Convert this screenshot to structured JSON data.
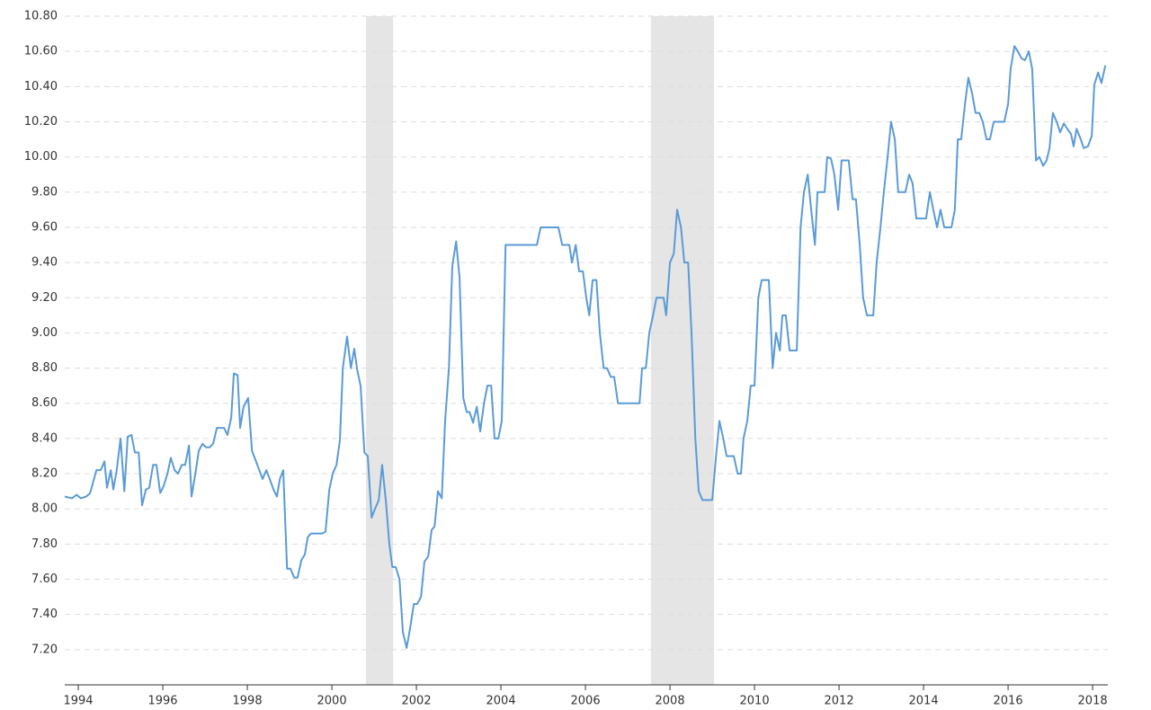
{
  "chart_data": {
    "type": "line",
    "color": "#5b9bd5",
    "grid": true,
    "shade_color": "#e5e5e5",
    "xlim": [
      1993.68,
      2018.36
    ],
    "xticks": [
      1994,
      1996,
      1998,
      2000,
      2002,
      2004,
      2006,
      2008,
      2010,
      2012,
      2014,
      2016,
      2018
    ],
    "ylim": [
      7.0,
      10.8
    ],
    "yticks": [
      {
        "value": 7.2,
        "label": "7.20"
      },
      {
        "value": 7.4,
        "label": "7.40"
      },
      {
        "value": 7.6,
        "label": "7.60"
      },
      {
        "value": 7.8,
        "label": "7.80"
      },
      {
        "value": 8.0,
        "label": "8.00"
      },
      {
        "value": 8.2,
        "label": "8.20"
      },
      {
        "value": 8.4,
        "label": "8.40"
      },
      {
        "value": 8.6,
        "label": "8.60"
      },
      {
        "value": 8.8,
        "label": "8.80"
      },
      {
        "value": 9.0,
        "label": "9.00"
      },
      {
        "value": 9.2,
        "label": "9.20"
      },
      {
        "value": 9.4,
        "label": "9.40"
      },
      {
        "value": 9.6,
        "label": "9.60"
      },
      {
        "value": 9.8,
        "label": "9.80"
      },
      {
        "value": 10.0,
        "label": "10.00"
      },
      {
        "value": 10.2,
        "label": "10.20"
      },
      {
        "value": 10.4,
        "label": "10.40"
      },
      {
        "value": 10.6,
        "label": "10.60"
      },
      {
        "value": 10.8,
        "label": "10.80"
      }
    ],
    "shaded_ranges": [
      [
        2000.81,
        2001.45
      ],
      [
        2007.55,
        2009.04
      ]
    ],
    "x": [
      1993.68,
      1993.85,
      1993.96,
      1994.06,
      1994.19,
      1994.28,
      1994.43,
      1994.53,
      1994.62,
      1994.68,
      1994.77,
      1994.83,
      1994.91,
      1995.0,
      1995.09,
      1995.17,
      1995.26,
      1995.34,
      1995.43,
      1995.51,
      1995.6,
      1995.68,
      1995.77,
      1995.85,
      1995.94,
      1996.02,
      1996.11,
      1996.19,
      1996.28,
      1996.36,
      1996.45,
      1996.53,
      1996.62,
      1996.68,
      1996.79,
      1996.85,
      1996.94,
      1997.02,
      1997.11,
      1997.19,
      1997.28,
      1997.36,
      1997.45,
      1997.53,
      1997.62,
      1997.68,
      1997.77,
      1997.83,
      1997.91,
      1998.02,
      1998.11,
      1998.19,
      1998.36,
      1998.45,
      1998.53,
      1998.62,
      1998.7,
      1998.77,
      1998.85,
      1998.94,
      1999.02,
      1999.11,
      1999.19,
      1999.28,
      1999.36,
      1999.43,
      1999.51,
      1999.6,
      1999.77,
      1999.85,
      1999.94,
      2000.02,
      2000.11,
      2000.19,
      2000.26,
      2000.36,
      2000.45,
      2000.53,
      2000.6,
      2000.68,
      2000.77,
      2000.85,
      2000.94,
      2001.02,
      2001.11,
      2001.19,
      2001.28,
      2001.36,
      2001.43,
      2001.51,
      2001.6,
      2001.68,
      2001.77,
      2001.85,
      2001.94,
      2002.02,
      2002.11,
      2002.19,
      2002.28,
      2002.36,
      2002.43,
      2002.51,
      2002.6,
      2002.68,
      2002.77,
      2002.85,
      2002.94,
      2003.02,
      2003.11,
      2003.19,
      2003.26,
      2003.34,
      2003.43,
      2003.51,
      2003.6,
      2003.68,
      2003.77,
      2003.85,
      2003.94,
      2004.02,
      2004.11,
      2004.28,
      2004.85,
      2004.94,
      2005.36,
      2005.45,
      2005.62,
      2005.68,
      2005.77,
      2005.85,
      2005.94,
      2006.02,
      2006.09,
      2006.17,
      2006.26,
      2006.34,
      2006.43,
      2006.51,
      2006.6,
      2006.68,
      2006.77,
      2007.28,
      2007.34,
      2007.43,
      2007.51,
      2007.6,
      2007.68,
      2007.85,
      2007.91,
      2008.0,
      2008.09,
      2008.17,
      2008.26,
      2008.34,
      2008.43,
      2008.51,
      2008.6,
      2008.68,
      2008.77,
      2009.0,
      2009.09,
      2009.17,
      2009.26,
      2009.34,
      2009.51,
      2009.6,
      2009.68,
      2009.74,
      2009.83,
      2009.91,
      2010.0,
      2010.09,
      2010.17,
      2010.34,
      2010.43,
      2010.51,
      2010.6,
      2010.66,
      2010.74,
      2010.83,
      2011.0,
      2011.09,
      2011.17,
      2011.26,
      2011.34,
      2011.43,
      2011.49,
      2011.66,
      2011.72,
      2011.81,
      2011.89,
      2011.98,
      2012.06,
      2012.23,
      2012.32,
      2012.4,
      2012.49,
      2012.57,
      2012.66,
      2012.81,
      2012.89,
      2012.98,
      2013.06,
      2013.15,
      2013.23,
      2013.32,
      2013.4,
      2013.57,
      2013.66,
      2013.74,
      2013.83,
      2014.06,
      2014.15,
      2014.23,
      2014.32,
      2014.4,
      2014.49,
      2014.66,
      2014.74,
      2014.81,
      2014.89,
      2014.98,
      2015.06,
      2015.15,
      2015.23,
      2015.32,
      2015.4,
      2015.49,
      2015.57,
      2015.66,
      2015.91,
      2016.0,
      2016.06,
      2016.15,
      2016.23,
      2016.32,
      2016.4,
      2016.49,
      2016.57,
      2016.66,
      2016.74,
      2016.83,
      2016.91,
      2016.98,
      2017.06,
      2017.15,
      2017.23,
      2017.32,
      2017.4,
      2017.49,
      2017.55,
      2017.62,
      2017.72,
      2017.79,
      2017.89,
      2017.98,
      2018.04,
      2018.13,
      2018.21,
      2018.3
    ],
    "values": [
      8.07,
      8.06,
      8.08,
      8.06,
      8.07,
      8.09,
      8.22,
      8.22,
      8.27,
      8.12,
      8.22,
      8.11,
      8.22,
      8.4,
      8.1,
      8.41,
      8.42,
      8.32,
      8.32,
      8.02,
      8.11,
      8.12,
      8.25,
      8.25,
      8.09,
      8.13,
      8.2,
      8.29,
      8.22,
      8.2,
      8.25,
      8.25,
      8.36,
      8.07,
      8.23,
      8.33,
      8.37,
      8.35,
      8.35,
      8.37,
      8.46,
      8.46,
      8.46,
      8.42,
      8.52,
      8.77,
      8.76,
      8.46,
      8.58,
      8.63,
      8.33,
      8.28,
      8.17,
      8.22,
      8.17,
      8.11,
      8.07,
      8.17,
      8.22,
      7.66,
      7.66,
      7.61,
      7.61,
      7.71,
      7.74,
      7.84,
      7.86,
      7.86,
      7.86,
      7.87,
      8.11,
      8.2,
      8.25,
      8.39,
      8.8,
      8.98,
      8.8,
      8.91,
      8.79,
      8.7,
      8.32,
      8.3,
      7.95,
      8.0,
      8.05,
      8.25,
      8.04,
      7.8,
      7.67,
      7.67,
      7.6,
      7.3,
      7.21,
      7.32,
      7.46,
      7.46,
      7.5,
      7.7,
      7.73,
      7.88,
      7.9,
      8.1,
      8.06,
      8.5,
      8.8,
      9.38,
      9.52,
      9.32,
      8.63,
      8.55,
      8.55,
      8.49,
      8.58,
      8.44,
      8.6,
      8.7,
      8.7,
      8.4,
      8.4,
      8.5,
      9.5,
      9.5,
      9.5,
      9.6,
      9.6,
      9.5,
      9.5,
      9.4,
      9.5,
      9.35,
      9.35,
      9.2,
      9.1,
      9.3,
      9.3,
      9.0,
      8.8,
      8.8,
      8.75,
      8.75,
      8.6,
      8.6,
      8.8,
      8.8,
      9.0,
      9.1,
      9.2,
      9.2,
      9.1,
      9.4,
      9.45,
      9.7,
      9.6,
      9.4,
      9.4,
      9.0,
      8.4,
      8.1,
      8.05,
      8.05,
      8.3,
      8.5,
      8.4,
      8.3,
      8.3,
      8.2,
      8.2,
      8.4,
      8.5,
      8.7,
      8.7,
      9.2,
      9.3,
      9.3,
      8.8,
      9.0,
      8.9,
      9.1,
      9.1,
      8.9,
      8.9,
      9.6,
      9.8,
      9.9,
      9.7,
      9.5,
      9.8,
      9.8,
      10.0,
      9.99,
      9.9,
      9.7,
      9.98,
      9.98,
      9.76,
      9.76,
      9.5,
      9.2,
      9.1,
      9.1,
      9.4,
      9.6,
      9.8,
      10.0,
      10.2,
      10.1,
      9.8,
      9.8,
      9.9,
      9.85,
      9.65,
      9.65,
      9.8,
      9.7,
      9.6,
      9.7,
      9.6,
      9.6,
      9.7,
      10.1,
      10.1,
      10.3,
      10.45,
      10.36,
      10.25,
      10.25,
      10.2,
      10.1,
      10.1,
      10.2,
      10.2,
      10.3,
      10.5,
      10.63,
      10.6,
      10.56,
      10.55,
      10.6,
      10.5,
      9.98,
      10.0,
      9.95,
      9.98,
      10.05,
      10.25,
      10.2,
      10.14,
      10.19,
      10.16,
      10.13,
      10.06,
      10.16,
      10.1,
      10.05,
      10.06,
      10.12,
      10.41,
      10.48,
      10.42,
      10.52
    ]
  }
}
